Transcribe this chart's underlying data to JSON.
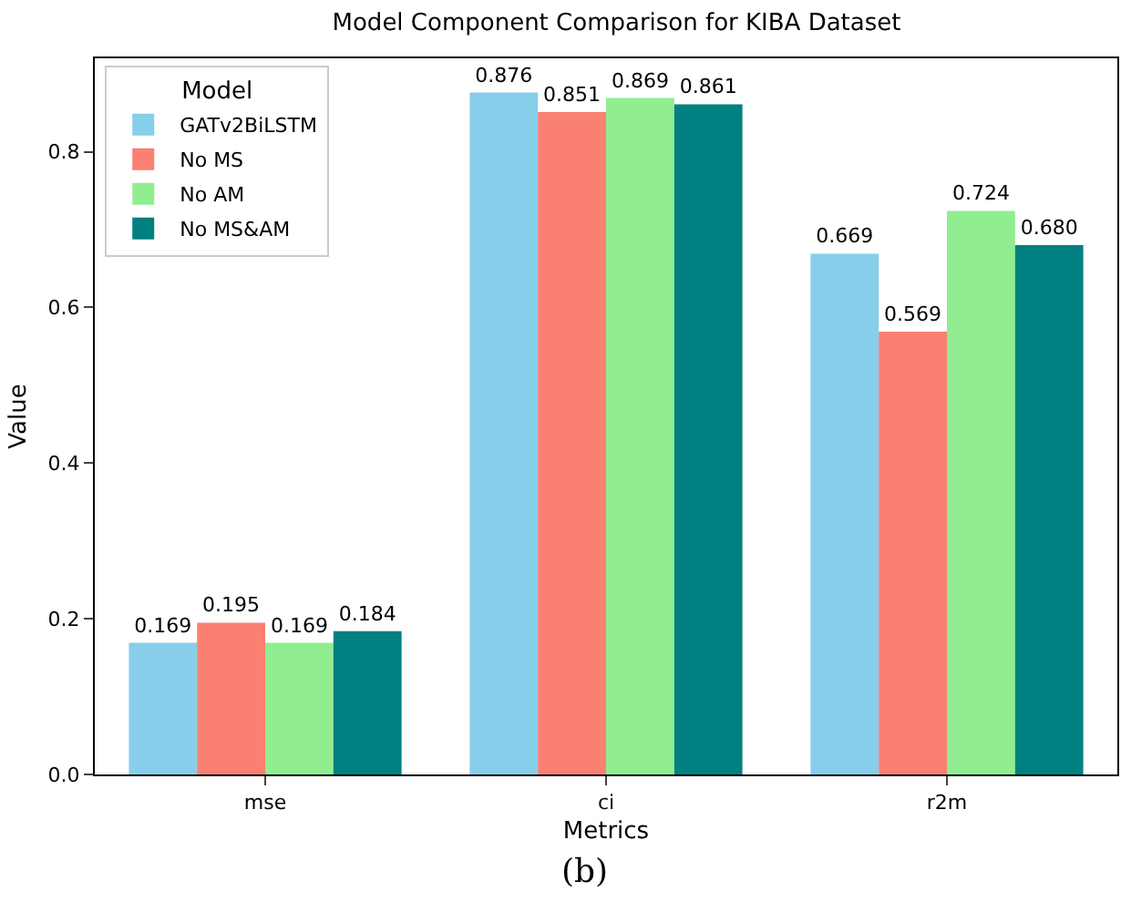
{
  "chart_data": {
    "type": "bar",
    "title": "Model Component Comparison for KIBA Dataset",
    "xlabel": "Metrics",
    "ylabel": "Value",
    "legend_title": "Model",
    "categories": [
      "mse",
      "ci",
      "r2m"
    ],
    "series": [
      {
        "name": "GATv2BiLSTM",
        "color": "#87ceeb",
        "values": [
          0.169,
          0.876,
          0.669
        ],
        "value_labels": [
          "0.169",
          "0.876",
          "0.669"
        ]
      },
      {
        "name": "No MS",
        "color": "#fa8072",
        "values": [
          0.195,
          0.851,
          0.569
        ],
        "value_labels": [
          "0.195",
          "0.851",
          "0.569"
        ]
      },
      {
        "name": "No AM",
        "color": "#90ee90",
        "values": [
          0.169,
          0.869,
          0.724
        ],
        "value_labels": [
          "0.169",
          "0.869",
          "0.724"
        ]
      },
      {
        "name": "No MS&AM",
        "color": "#008080",
        "values": [
          0.184,
          0.861,
          0.68
        ],
        "value_labels": [
          "0.184",
          "0.861",
          "0.680"
        ]
      }
    ],
    "ylim": [
      0,
      0.92
    ],
    "yticks": [
      {
        "value": 0,
        "label": "0.0"
      },
      0.2,
      0.4,
      0.6,
      0.8
    ],
    "grid": false,
    "legend": "top left",
    "annotations": [
      "(b)"
    ]
  }
}
